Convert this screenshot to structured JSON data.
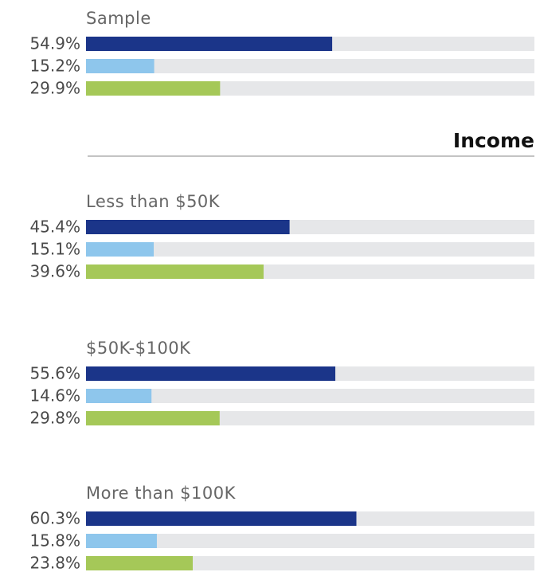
{
  "chart_data": {
    "type": "bar",
    "xlim": [
      0,
      100
    ],
    "colors": [
      "#1b3589",
      "#8ec6ec",
      "#a5c858"
    ],
    "heading": "Income",
    "groups": [
      {
        "label": "Sample",
        "values": [
          54.9,
          15.2,
          29.9
        ],
        "value_labels": [
          "54.9%",
          "15.2%",
          "29.9%"
        ]
      },
      {
        "label": "Less than $50K",
        "values": [
          45.4,
          15.1,
          39.6
        ],
        "value_labels": [
          "45.4%",
          "15.1%",
          "39.6%"
        ]
      },
      {
        "label": "$50K-$100K",
        "values": [
          55.6,
          14.6,
          29.8
        ],
        "value_labels": [
          "55.6%",
          "14.6%",
          "29.8%"
        ]
      },
      {
        "label": "More than $100K",
        "values": [
          60.3,
          15.8,
          23.8
        ],
        "value_labels": [
          "60.3%",
          "15.8%",
          "23.8%"
        ]
      }
    ]
  }
}
